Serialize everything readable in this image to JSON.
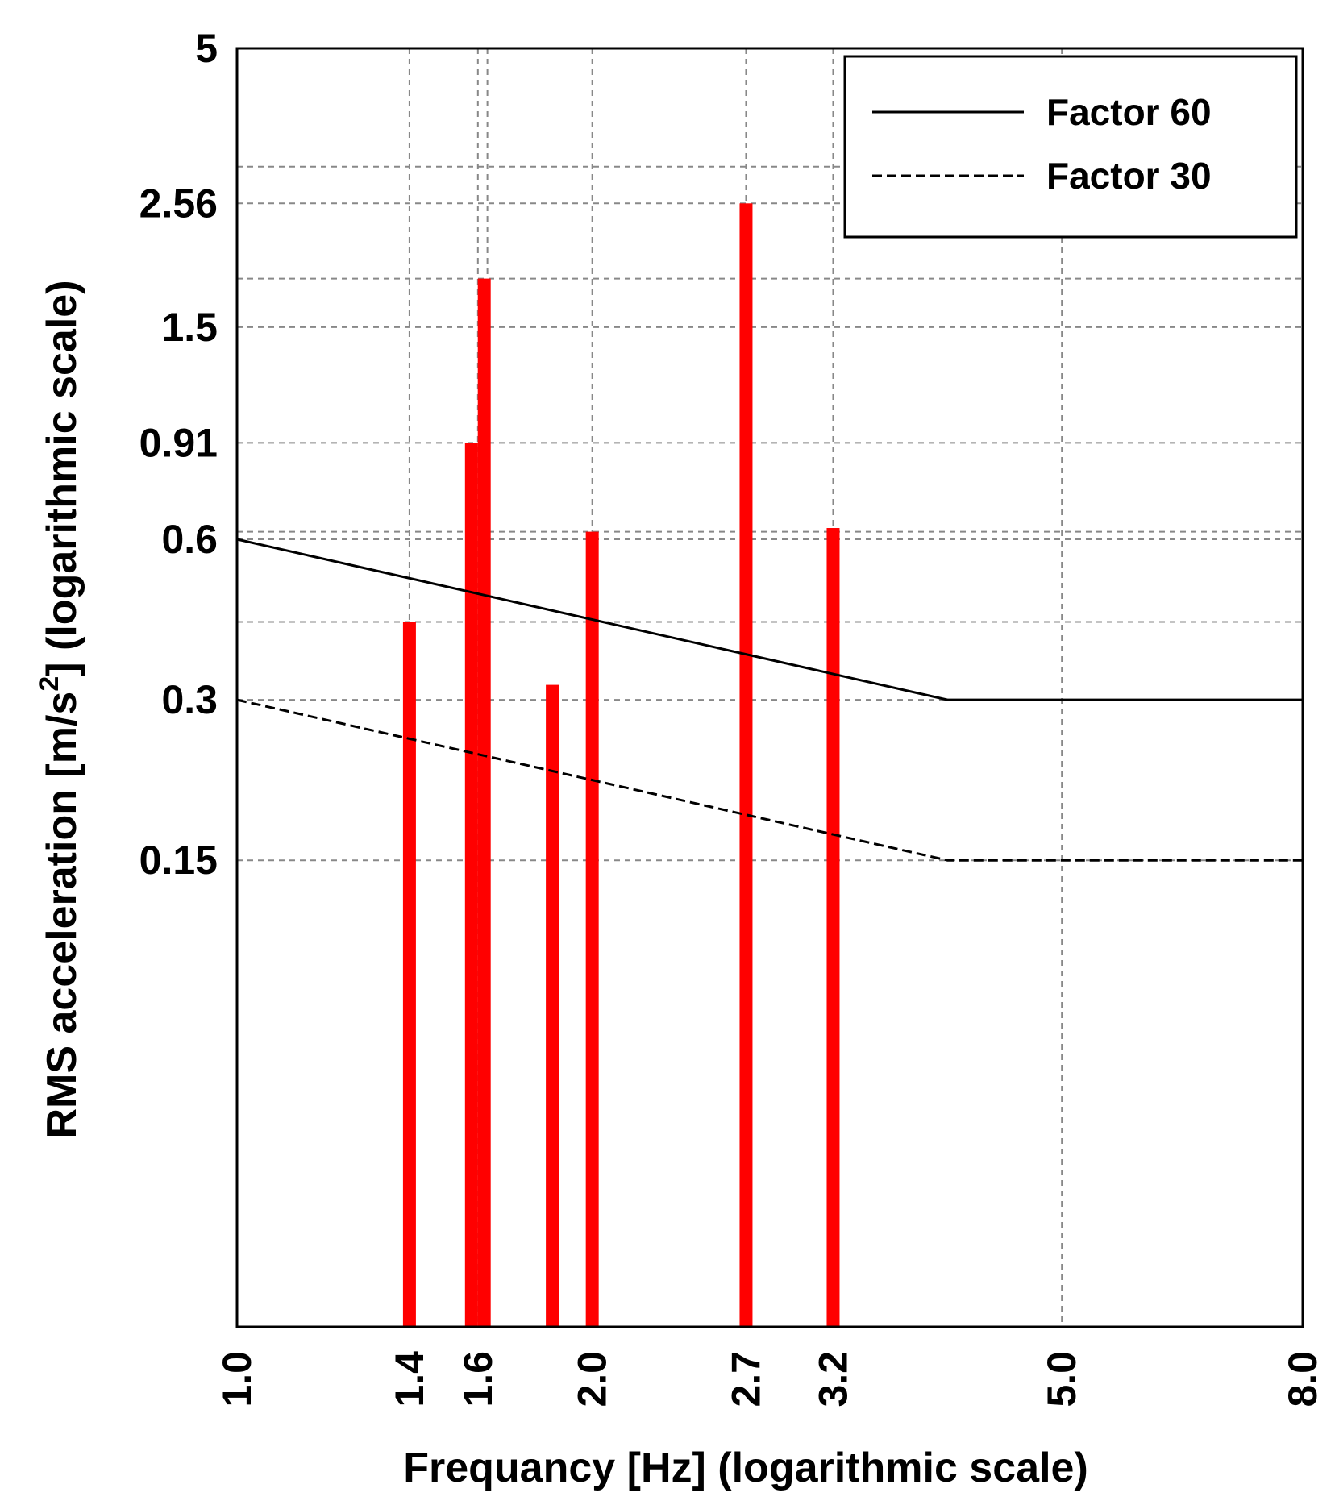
{
  "chart_data": {
    "type": "bar",
    "title": "",
    "xlabel": "Frequancy [Hz] (logarithmic scale)",
    "ylabel_main": "RMS acceleration [m/s",
    "ylabel_sup": "2",
    "ylabel_tail": "] (logarithmic scale)",
    "x_scale": "log",
    "y_scale": "log",
    "xlim": [
      1.0,
      8.0
    ],
    "ylim": [
      0.02,
      5
    ],
    "x_ticks": [
      {
        "value": 1.0,
        "label": "1.0"
      },
      {
        "value": 1.4,
        "label": "1.4"
      },
      {
        "value": 1.6,
        "label": "1.6"
      },
      {
        "value": 2.0,
        "label": "2.0"
      },
      {
        "value": 2.7,
        "label": "2.7"
      },
      {
        "value": 3.2,
        "label": "3.2"
      },
      {
        "value": 5.0,
        "label": "5.0"
      },
      {
        "value": 8.0,
        "label": "8.0"
      }
    ],
    "y_ticks": [
      {
        "value": 5,
        "label": "5"
      },
      {
        "value": 2.56,
        "label": "2.56"
      },
      {
        "value": 1.5,
        "label": "1.5"
      },
      {
        "value": 0.91,
        "label": "0.91"
      },
      {
        "value": 0.6,
        "label": "0.6"
      },
      {
        "value": 0.3,
        "label": "0.3"
      },
      {
        "value": 0.15,
        "label": "0.15"
      }
    ],
    "extra_y_gridlines": [
      3.0,
      1.85,
      0.62,
      0.42
    ],
    "extra_x_gridlines": [
      1.63
    ],
    "grid": true,
    "legend_position": "top-right",
    "bars": [
      {
        "x": 1.4,
        "y": 0.42
      },
      {
        "x": 1.58,
        "y": 0.91
      },
      {
        "x": 1.62,
        "y": 1.85
      },
      {
        "x": 1.85,
        "y": 0.32
      },
      {
        "x": 2.0,
        "y": 0.62
      },
      {
        "x": 2.7,
        "y": 2.56
      },
      {
        "x": 3.2,
        "y": 0.63
      }
    ],
    "bar_color": "#ff0000",
    "series": [
      {
        "name": "Factor 60",
        "style": "solid",
        "points": [
          [
            1.0,
            0.6
          ],
          [
            4.0,
            0.3
          ],
          [
            8.0,
            0.3
          ]
        ]
      },
      {
        "name": "Factor 30",
        "style": "dashed",
        "points": [
          [
            1.0,
            0.3
          ],
          [
            4.0,
            0.15
          ],
          [
            8.0,
            0.15
          ]
        ]
      }
    ]
  }
}
